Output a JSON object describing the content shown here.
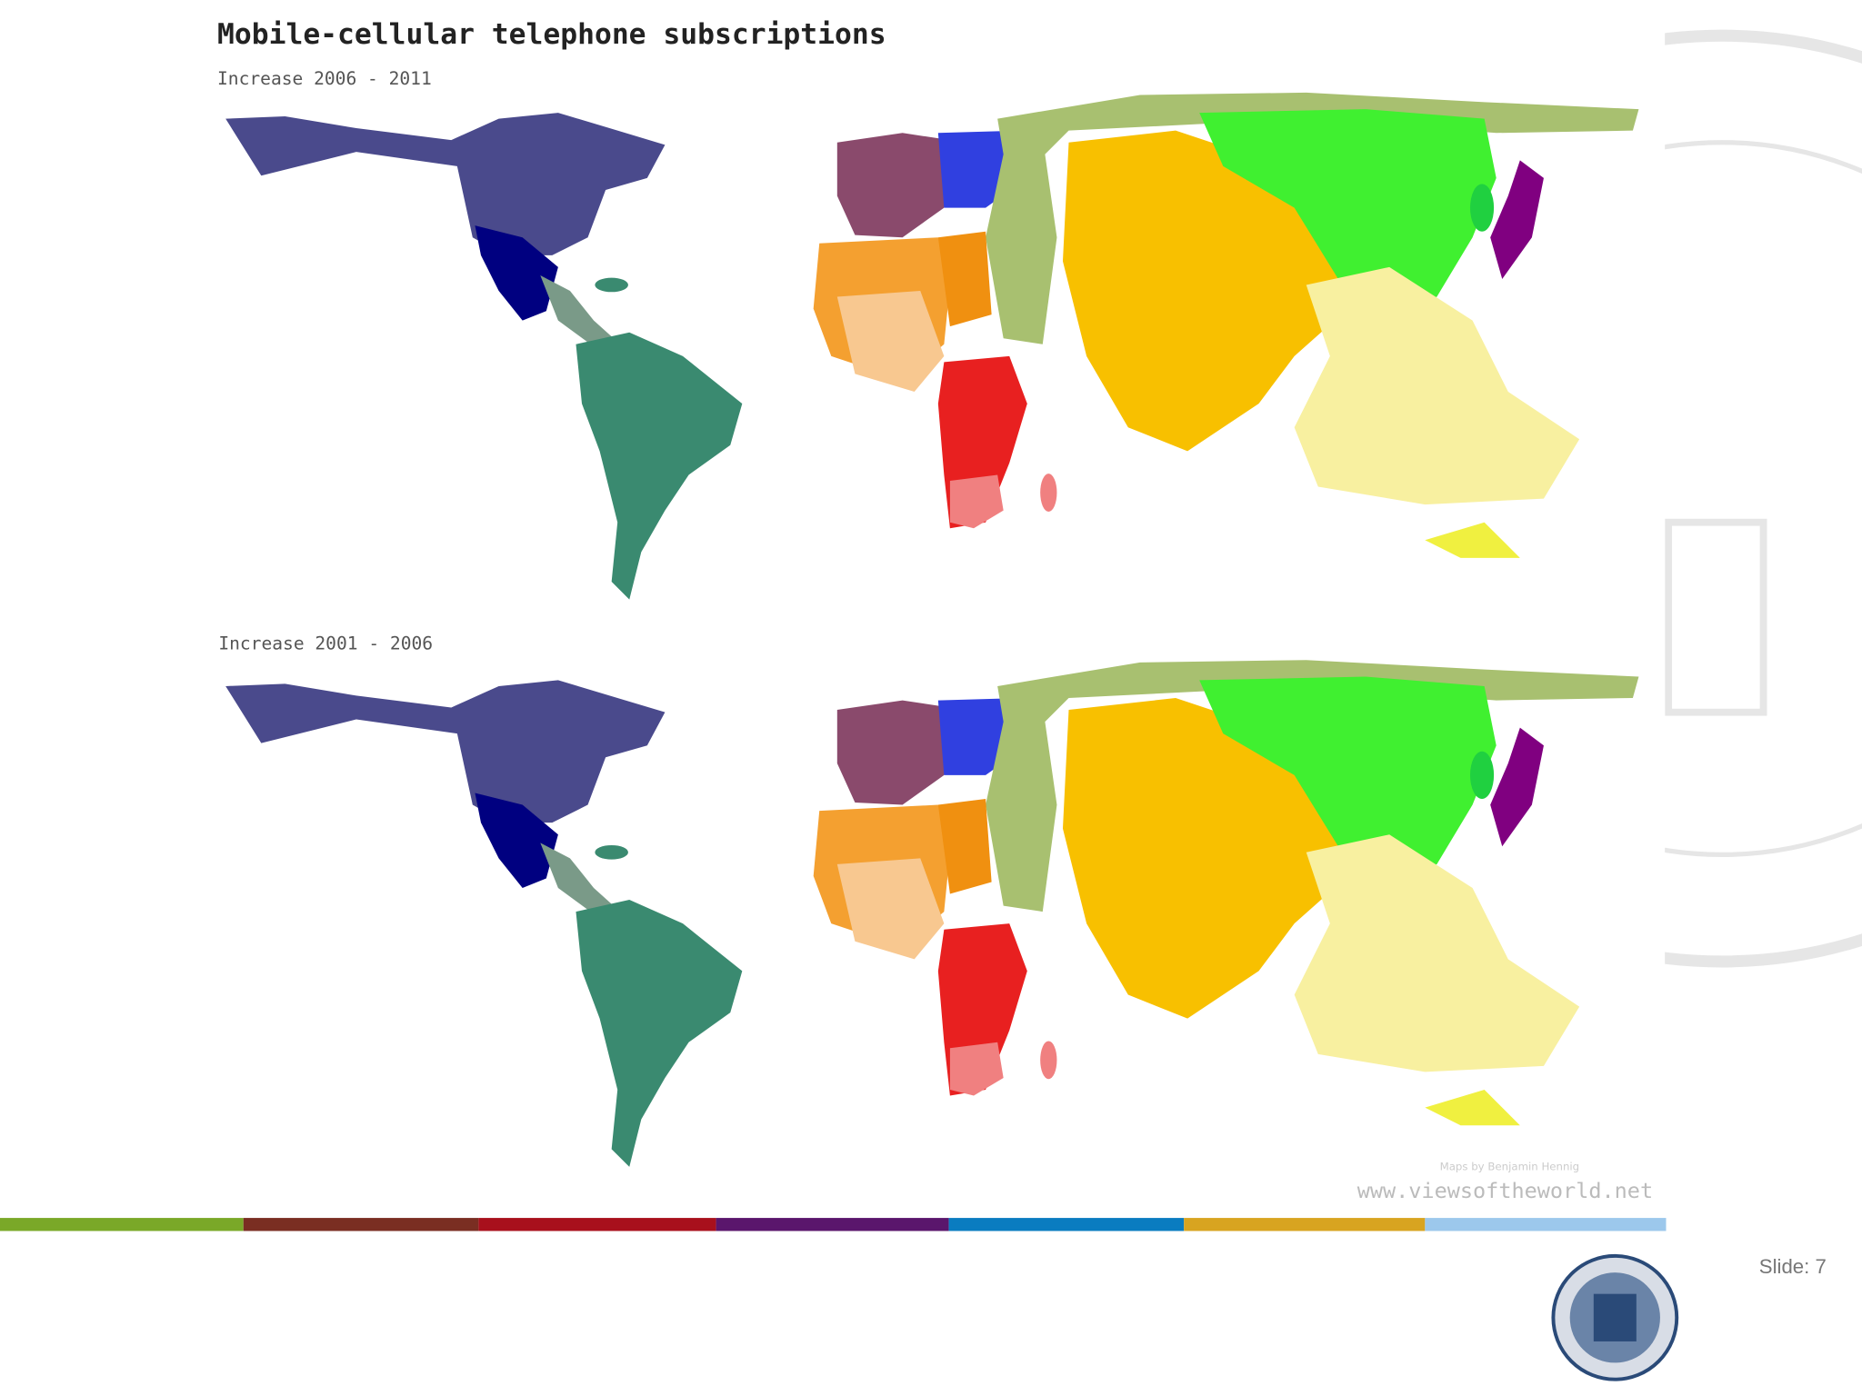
{
  "slide": {
    "title": "Mobile-cellular telephone subscriptions",
    "panels": [
      {
        "label": "Increase 2006 - 2011"
      },
      {
        "label": "Increase 2001 - 2006"
      }
    ],
    "credit": "Maps by Benjamin Hennig",
    "url": "www.viewsoftheworld.net",
    "slide_number": "Slide: 7"
  }
}
